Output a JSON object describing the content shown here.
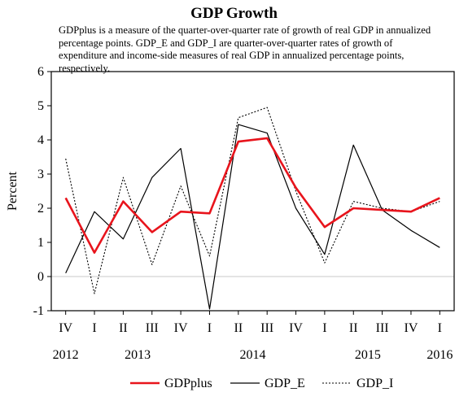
{
  "chart_data": {
    "type": "line",
    "title": "GDP Growth",
    "subtitle": "GDPplus is a measure of the quarter-over-quarter rate of growth of real GDP in annualized percentage points. GDP_E and GDP_I are quarter-over-quarter rates of growth of expenditure and income-side measures of real GDP in annualized percentage points, respectively.",
    "ylabel": "Percent",
    "xlabel": "",
    "ylim": [
      -1,
      6
    ],
    "yticks": [
      "-1",
      "0",
      "1",
      "2",
      "3",
      "4",
      "5",
      "6"
    ],
    "quarter_labels": [
      "IV",
      "I",
      "II",
      "III",
      "IV",
      "I",
      "II",
      "III",
      "IV",
      "I",
      "II",
      "III",
      "IV",
      "I"
    ],
    "year_labels": [
      {
        "label": "2012",
        "at": 0
      },
      {
        "label": "2013",
        "at": 2.5
      },
      {
        "label": "2014",
        "at": 6.5
      },
      {
        "label": "2015",
        "at": 10.5
      },
      {
        "label": "2016",
        "at": 13
      }
    ],
    "zero_line": true,
    "legend_position": "bottom",
    "series": [
      {
        "name": "GDPplus",
        "color": "#e8141c",
        "style": "solid-thick",
        "values": [
          2.3,
          0.7,
          2.2,
          1.3,
          1.9,
          1.85,
          3.95,
          4.05,
          2.6,
          1.45,
          2.0,
          1.95,
          1.9,
          2.3
        ]
      },
      {
        "name": "GDP_E",
        "color": "#000000",
        "style": "solid",
        "values": [
          0.1,
          1.9,
          1.1,
          2.9,
          3.75,
          -0.95,
          4.45,
          4.2,
          2.0,
          0.65,
          3.85,
          1.95,
          1.35,
          0.85
        ]
      },
      {
        "name": "GDP_I",
        "color": "#000000",
        "style": "dotted",
        "values": [
          3.45,
          -0.5,
          2.9,
          0.35,
          2.65,
          0.6,
          4.65,
          4.95,
          2.5,
          0.4,
          2.2,
          2.0,
          1.9,
          2.2
        ]
      }
    ]
  }
}
